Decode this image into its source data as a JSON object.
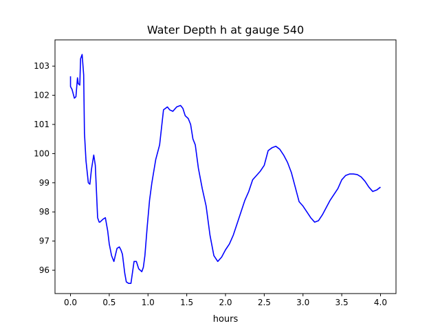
{
  "chart_data": {
    "type": "line",
    "title": "Water Depth h at gauge 540",
    "xlabel": "hours",
    "ylabel": "",
    "xlim": [
      -0.2,
      4.2
    ],
    "ylim": [
      95.2,
      103.9
    ],
    "xticks": [
      0.0,
      0.5,
      1.0,
      1.5,
      2.0,
      2.5,
      3.0,
      3.5,
      4.0
    ],
    "xtick_labels": [
      "0.0",
      "0.5",
      "1.0",
      "1.5",
      "2.0",
      "2.5",
      "3.0",
      "3.5",
      "4.0"
    ],
    "yticks": [
      96,
      97,
      98,
      99,
      100,
      101,
      102,
      103
    ],
    "ytick_labels": [
      "96",
      "97",
      "98",
      "99",
      "100",
      "101",
      "102",
      "103"
    ],
    "grid": false,
    "series": [
      {
        "color": "#0000ff",
        "x": [
          0.0,
          0.0,
          0.01,
          0.02,
          0.03,
          0.05,
          0.07,
          0.09,
          0.1,
          0.12,
          0.13,
          0.15,
          0.17,
          0.18,
          0.2,
          0.21,
          0.23,
          0.25,
          0.27,
          0.3,
          0.32,
          0.35,
          0.37,
          0.38,
          0.4,
          0.42,
          0.45,
          0.48,
          0.5,
          0.53,
          0.56,
          0.6,
          0.63,
          0.65,
          0.67,
          0.7,
          0.72,
          0.75,
          0.78,
          0.82,
          0.85,
          0.88,
          0.92,
          0.94,
          0.96,
          0.99,
          1.02,
          1.05,
          1.1,
          1.15,
          1.2,
          1.25,
          1.28,
          1.32,
          1.37,
          1.42,
          1.45,
          1.48,
          1.52,
          1.55,
          1.58,
          1.61,
          1.65,
          1.7,
          1.75,
          1.8,
          1.85,
          1.9,
          1.95,
          2.0,
          2.05,
          2.1,
          2.15,
          2.2,
          2.25,
          2.3,
          2.35,
          2.4,
          2.45,
          2.5,
          2.55,
          2.6,
          2.65,
          2.7,
          2.75,
          2.8,
          2.85,
          2.9,
          2.95,
          3.0,
          3.05,
          3.1,
          3.15,
          3.2,
          3.25,
          3.3,
          3.35,
          3.4,
          3.45,
          3.5,
          3.55,
          3.6,
          3.65,
          3.7,
          3.75,
          3.8,
          3.85,
          3.9,
          3.95,
          4.0
        ],
        "y": [
          102.65,
          102.3,
          102.25,
          102.2,
          102.1,
          101.9,
          101.95,
          102.6,
          102.4,
          102.35,
          103.25,
          103.4,
          102.7,
          100.7,
          99.75,
          99.5,
          99.0,
          98.95,
          99.45,
          99.95,
          99.6,
          97.8,
          97.65,
          97.65,
          97.7,
          97.75,
          97.8,
          97.35,
          96.9,
          96.5,
          96.3,
          96.75,
          96.8,
          96.7,
          96.55,
          95.9,
          95.6,
          95.55,
          95.55,
          96.3,
          96.3,
          96.05,
          95.95,
          96.1,
          96.5,
          97.5,
          98.4,
          99.0,
          99.8,
          100.3,
          101.5,
          101.6,
          101.5,
          101.45,
          101.6,
          101.65,
          101.55,
          101.3,
          101.2,
          101.0,
          100.5,
          100.3,
          99.5,
          98.8,
          98.2,
          97.2,
          96.5,
          96.3,
          96.45,
          96.7,
          96.9,
          97.2,
          97.6,
          98.0,
          98.4,
          98.7,
          99.1,
          99.25,
          99.4,
          99.6,
          100.1,
          100.2,
          100.25,
          100.15,
          99.95,
          99.7,
          99.35,
          98.85,
          98.35,
          98.2,
          98.0,
          97.8,
          97.65,
          97.7,
          97.9,
          98.15,
          98.4,
          98.6,
          98.8,
          99.1,
          99.25,
          99.3,
          99.3,
          99.28,
          99.2,
          99.05,
          98.85,
          98.7,
          98.75,
          98.85
        ]
      }
    ]
  }
}
